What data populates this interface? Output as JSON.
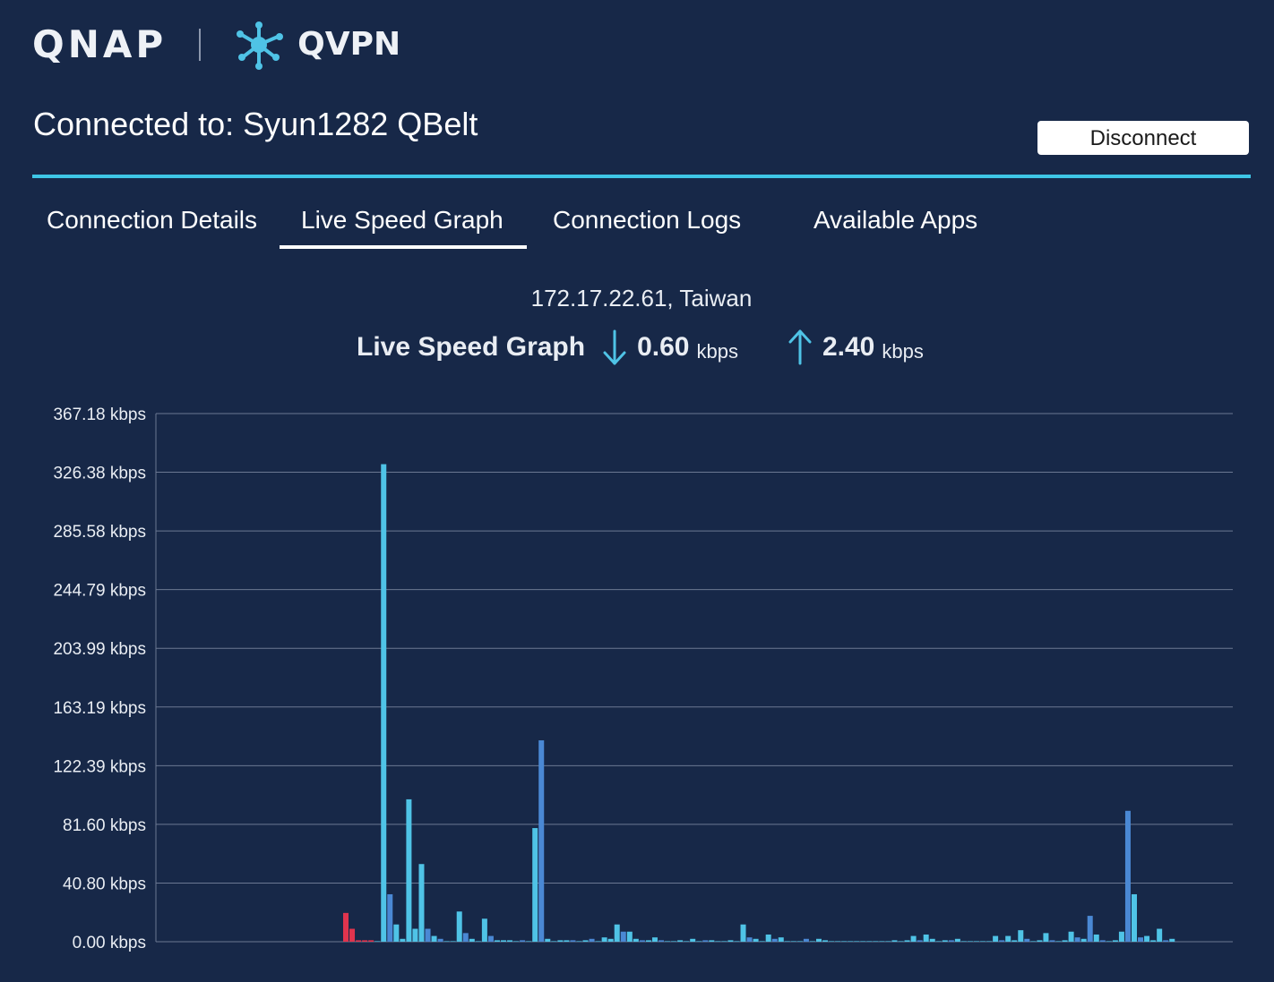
{
  "header": {
    "brand_logo": "QNAP",
    "app_name": "QVPN",
    "app_icon": "qvpn-network-icon"
  },
  "connection": {
    "title": "Connected to: Syun1282 QBelt",
    "disconnect_label": "Disconnect",
    "location": "172.17.22.61, Taiwan"
  },
  "tabs": [
    {
      "label": "Connection Details",
      "active": false
    },
    {
      "label": "Live Speed Graph",
      "active": true
    },
    {
      "label": "Connection Logs",
      "active": false
    },
    {
      "label": "Available Apps",
      "active": false
    }
  ],
  "speed": {
    "title": "Live Speed Graph",
    "download_icon": "arrow-down-icon",
    "download_value": "0.60",
    "download_unit": "kbps",
    "upload_icon": "arrow-up-icon",
    "upload_value": "2.40",
    "upload_unit": "kbps"
  },
  "colors": {
    "background": "#172848",
    "accent": "#3ec6e6",
    "bar_light": "#4fc3e6",
    "bar_dark": "#4a88d4",
    "bar_red": "#e0344e"
  },
  "chart_data": {
    "type": "bar",
    "title": "",
    "xlabel": "",
    "ylabel": "",
    "y_unit": "kbps",
    "ylim": [
      0,
      367.18
    ],
    "y_ticks": [
      "0.00 kbps",
      "40.80 kbps",
      "81.60 kbps",
      "122.39 kbps",
      "163.19 kbps",
      "203.99 kbps",
      "244.79 kbps",
      "285.58 kbps",
      "326.38 kbps",
      "367.18 kbps"
    ],
    "grid": true,
    "bars": [
      {
        "v": 20,
        "c": "red"
      },
      {
        "v": 9,
        "c": "red"
      },
      {
        "v": 1,
        "c": "red"
      },
      {
        "v": 1,
        "c": "red"
      },
      {
        "v": 1,
        "c": "red"
      },
      {
        "v": 0,
        "c": "light"
      },
      {
        "v": 332,
        "c": "light"
      },
      {
        "v": 33,
        "c": "dark"
      },
      {
        "v": 12,
        "c": "light"
      },
      {
        "v": 2,
        "c": "light"
      },
      {
        "v": 99,
        "c": "light"
      },
      {
        "v": 9,
        "c": "light"
      },
      {
        "v": 54,
        "c": "light"
      },
      {
        "v": 9,
        "c": "dark"
      },
      {
        "v": 4,
        "c": "light"
      },
      {
        "v": 2,
        "c": "dark"
      },
      {
        "v": 0,
        "c": "light"
      },
      {
        "v": 0,
        "c": "light"
      },
      {
        "v": 21,
        "c": "light"
      },
      {
        "v": 6,
        "c": "dark"
      },
      {
        "v": 2,
        "c": "light"
      },
      {
        "v": 0,
        "c": "light"
      },
      {
        "v": 16,
        "c": "light"
      },
      {
        "v": 4,
        "c": "dark"
      },
      {
        "v": 1,
        "c": "light"
      },
      {
        "v": 1,
        "c": "light"
      },
      {
        "v": 1,
        "c": "light"
      },
      {
        "v": 0,
        "c": "light"
      },
      {
        "v": 1,
        "c": "dark"
      },
      {
        "v": 0,
        "c": "light"
      },
      {
        "v": 79,
        "c": "light"
      },
      {
        "v": 140,
        "c": "dark"
      },
      {
        "v": 2,
        "c": "light"
      },
      {
        "v": 0,
        "c": "light"
      },
      {
        "v": 1,
        "c": "light"
      },
      {
        "v": 1,
        "c": "light"
      },
      {
        "v": 1,
        "c": "dark"
      },
      {
        "v": 0,
        "c": "light"
      },
      {
        "v": 1,
        "c": "light"
      },
      {
        "v": 2,
        "c": "dark"
      },
      {
        "v": 0,
        "c": "light"
      },
      {
        "v": 3,
        "c": "light"
      },
      {
        "v": 2,
        "c": "light"
      },
      {
        "v": 12,
        "c": "light"
      },
      {
        "v": 7,
        "c": "dark"
      },
      {
        "v": 7,
        "c": "light"
      },
      {
        "v": 2,
        "c": "light"
      },
      {
        "v": 1,
        "c": "dark"
      },
      {
        "v": 1,
        "c": "light"
      },
      {
        "v": 3,
        "c": "light"
      },
      {
        "v": 1,
        "c": "dark"
      },
      {
        "v": 0,
        "c": "light"
      },
      {
        "v": 0,
        "c": "light"
      },
      {
        "v": 1,
        "c": "light"
      },
      {
        "v": 0,
        "c": "light"
      },
      {
        "v": 2,
        "c": "light"
      },
      {
        "v": 0,
        "c": "light"
      },
      {
        "v": 1,
        "c": "dark"
      },
      {
        "v": 1,
        "c": "light"
      },
      {
        "v": 0,
        "c": "light"
      },
      {
        "v": 0,
        "c": "light"
      },
      {
        "v": 1,
        "c": "light"
      },
      {
        "v": 0,
        "c": "light"
      },
      {
        "v": 12,
        "c": "light"
      },
      {
        "v": 3,
        "c": "dark"
      },
      {
        "v": 2,
        "c": "light"
      },
      {
        "v": 0,
        "c": "light"
      },
      {
        "v": 5,
        "c": "light"
      },
      {
        "v": 2,
        "c": "dark"
      },
      {
        "v": 3,
        "c": "light"
      },
      {
        "v": 0,
        "c": "light"
      },
      {
        "v": 0,
        "c": "light"
      },
      {
        "v": 0,
        "c": "light"
      },
      {
        "v": 2,
        "c": "dark"
      },
      {
        "v": 0,
        "c": "light"
      },
      {
        "v": 2,
        "c": "light"
      },
      {
        "v": 1,
        "c": "light"
      },
      {
        "v": 0,
        "c": "light"
      },
      {
        "v": 0,
        "c": "light"
      },
      {
        "v": 0,
        "c": "light"
      },
      {
        "v": 0,
        "c": "light"
      },
      {
        "v": 0,
        "c": "light"
      },
      {
        "v": 0,
        "c": "light"
      },
      {
        "v": 0,
        "c": "light"
      },
      {
        "v": 0,
        "c": "light"
      },
      {
        "v": 0,
        "c": "light"
      },
      {
        "v": 0,
        "c": "light"
      },
      {
        "v": 1,
        "c": "light"
      },
      {
        "v": 0,
        "c": "light"
      },
      {
        "v": 1,
        "c": "light"
      },
      {
        "v": 4,
        "c": "light"
      },
      {
        "v": 1,
        "c": "dark"
      },
      {
        "v": 5,
        "c": "light"
      },
      {
        "v": 2,
        "c": "light"
      },
      {
        "v": 0,
        "c": "light"
      },
      {
        "v": 1,
        "c": "light"
      },
      {
        "v": 1,
        "c": "dark"
      },
      {
        "v": 2,
        "c": "light"
      },
      {
        "v": 0,
        "c": "light"
      },
      {
        "v": 0,
        "c": "light"
      },
      {
        "v": 0,
        "c": "light"
      },
      {
        "v": 0,
        "c": "light"
      },
      {
        "v": 0,
        "c": "light"
      },
      {
        "v": 4,
        "c": "light"
      },
      {
        "v": 1,
        "c": "dark"
      },
      {
        "v": 4,
        "c": "light"
      },
      {
        "v": 1,
        "c": "light"
      },
      {
        "v": 8,
        "c": "light"
      },
      {
        "v": 2,
        "c": "dark"
      },
      {
        "v": 0,
        "c": "light"
      },
      {
        "v": 1,
        "c": "light"
      },
      {
        "v": 6,
        "c": "light"
      },
      {
        "v": 1,
        "c": "dark"
      },
      {
        "v": 0,
        "c": "light"
      },
      {
        "v": 1,
        "c": "light"
      },
      {
        "v": 7,
        "c": "light"
      },
      {
        "v": 3,
        "c": "dark"
      },
      {
        "v": 2,
        "c": "light"
      },
      {
        "v": 18,
        "c": "dark"
      },
      {
        "v": 5,
        "c": "light"
      },
      {
        "v": 1,
        "c": "dark"
      },
      {
        "v": 0,
        "c": "light"
      },
      {
        "v": 1,
        "c": "light"
      },
      {
        "v": 7,
        "c": "light"
      },
      {
        "v": 91,
        "c": "dark"
      },
      {
        "v": 33,
        "c": "light"
      },
      {
        "v": 3,
        "c": "dark"
      },
      {
        "v": 4,
        "c": "light"
      },
      {
        "v": 1,
        "c": "light"
      },
      {
        "v": 9,
        "c": "light"
      },
      {
        "v": 1,
        "c": "dark"
      },
      {
        "v": 2,
        "c": "light"
      }
    ]
  }
}
